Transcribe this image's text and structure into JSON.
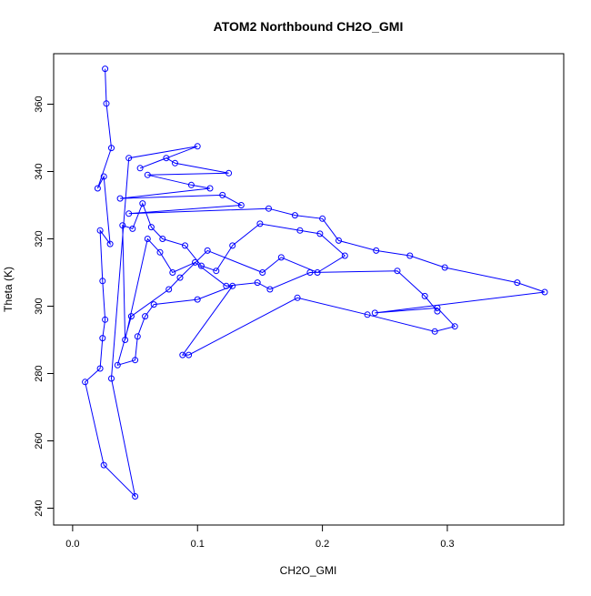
{
  "chart_data": {
    "type": "line",
    "title": "ATOM2 Northbound CH2O_GMI",
    "xlabel": "CH2O_GMI",
    "ylabel": "Theta (K)",
    "xlim": [
      0.0,
      0.38
    ],
    "ylim": [
      240,
      370
    ],
    "x_ticks": [
      0.0,
      0.1,
      0.2,
      0.3
    ],
    "x_tick_labels": [
      "0.0",
      "0.1",
      "0.2",
      "0.3"
    ],
    "y_ticks": [
      240,
      260,
      280,
      300,
      320,
      340,
      360
    ],
    "y_tick_labels": [
      "240",
      "260",
      "280",
      "300",
      "320",
      "340",
      "360"
    ],
    "grid": false,
    "legend": "none",
    "colors": {
      "series": "#0000ff",
      "axis": "#000000",
      "background": "#ffffff"
    },
    "series": [
      {
        "marker": "open-circle",
        "points": [
          {
            "x": 0.026,
            "y": 370.5
          },
          {
            "x": 0.027,
            "y": 360.2
          },
          {
            "x": 0.031,
            "y": 347.0
          },
          {
            "x": 0.02,
            "y": 335.0
          },
          {
            "x": 0.025,
            "y": 338.5
          },
          {
            "x": 0.03,
            "y": 318.5
          },
          {
            "x": 0.022,
            "y": 322.5
          },
          {
            "x": 0.024,
            "y": 307.5
          },
          {
            "x": 0.026,
            "y": 296.0
          },
          {
            "x": 0.024,
            "y": 290.5
          },
          {
            "x": 0.022,
            "y": 281.5
          },
          {
            "x": 0.01,
            "y": 277.5
          },
          {
            "x": 0.025,
            "y": 252.8
          },
          {
            "x": 0.05,
            "y": 243.5
          },
          {
            "x": 0.031,
            "y": 278.5
          },
          {
            "x": 0.045,
            "y": 344.0
          },
          {
            "x": 0.1,
            "y": 347.5
          },
          {
            "x": 0.054,
            "y": 341.0
          },
          {
            "x": 0.075,
            "y": 344.0
          },
          {
            "x": 0.082,
            "y": 342.5
          },
          {
            "x": 0.125,
            "y": 339.5
          },
          {
            "x": 0.06,
            "y": 339.0
          },
          {
            "x": 0.095,
            "y": 336.0
          },
          {
            "x": 0.11,
            "y": 335.0
          },
          {
            "x": 0.038,
            "y": 332.0
          },
          {
            "x": 0.12,
            "y": 333.0
          },
          {
            "x": 0.135,
            "y": 330.0
          },
          {
            "x": 0.045,
            "y": 327.5
          },
          {
            "x": 0.157,
            "y": 329.0
          },
          {
            "x": 0.178,
            "y": 327.0
          },
          {
            "x": 0.2,
            "y": 326.0
          },
          {
            "x": 0.213,
            "y": 319.5
          },
          {
            "x": 0.243,
            "y": 316.5
          },
          {
            "x": 0.27,
            "y": 315.0
          },
          {
            "x": 0.298,
            "y": 311.5
          },
          {
            "x": 0.356,
            "y": 307.0
          },
          {
            "x": 0.378,
            "y": 304.2
          },
          {
            "x": 0.242,
            "y": 298.0
          },
          {
            "x": 0.292,
            "y": 299.5
          },
          {
            "x": 0.306,
            "y": 294.0
          },
          {
            "x": 0.29,
            "y": 292.5
          },
          {
            "x": 0.236,
            "y": 297.5
          },
          {
            "x": 0.18,
            "y": 302.5
          },
          {
            "x": 0.093,
            "y": 285.5
          },
          {
            "x": 0.088,
            "y": 285.5
          },
          {
            "x": 0.128,
            "y": 306.0
          },
          {
            "x": 0.1,
            "y": 302.0
          },
          {
            "x": 0.065,
            "y": 300.5
          },
          {
            "x": 0.058,
            "y": 297.0
          },
          {
            "x": 0.052,
            "y": 291.0
          },
          {
            "x": 0.05,
            "y": 284.0
          },
          {
            "x": 0.036,
            "y": 282.5
          },
          {
            "x": 0.047,
            "y": 297.0
          },
          {
            "x": 0.077,
            "y": 305.0
          },
          {
            "x": 0.086,
            "y": 308.5
          },
          {
            "x": 0.108,
            "y": 316.5
          },
          {
            "x": 0.152,
            "y": 310.0
          },
          {
            "x": 0.167,
            "y": 314.5
          },
          {
            "x": 0.196,
            "y": 310.0
          },
          {
            "x": 0.218,
            "y": 315.0
          },
          {
            "x": 0.198,
            "y": 321.5
          },
          {
            "x": 0.182,
            "y": 322.5
          },
          {
            "x": 0.15,
            "y": 324.5
          },
          {
            "x": 0.128,
            "y": 318.0
          },
          {
            "x": 0.115,
            "y": 310.5
          },
          {
            "x": 0.103,
            "y": 312.0
          },
          {
            "x": 0.09,
            "y": 318.0
          },
          {
            "x": 0.072,
            "y": 320.0
          },
          {
            "x": 0.063,
            "y": 323.5
          },
          {
            "x": 0.056,
            "y": 330.5
          },
          {
            "x": 0.048,
            "y": 323.0
          },
          {
            "x": 0.04,
            "y": 324.0
          },
          {
            "x": 0.042,
            "y": 290.0
          },
          {
            "x": 0.06,
            "y": 320.0
          },
          {
            "x": 0.07,
            "y": 316.0
          },
          {
            "x": 0.08,
            "y": 310.0
          },
          {
            "x": 0.098,
            "y": 313.0
          },
          {
            "x": 0.123,
            "y": 306.0
          },
          {
            "x": 0.148,
            "y": 307.0
          },
          {
            "x": 0.158,
            "y": 305.0
          },
          {
            "x": 0.19,
            "y": 310.0
          },
          {
            "x": 0.26,
            "y": 310.5
          },
          {
            "x": 0.282,
            "y": 303.0
          },
          {
            "x": 0.292,
            "y": 298.5
          }
        ]
      }
    ]
  }
}
